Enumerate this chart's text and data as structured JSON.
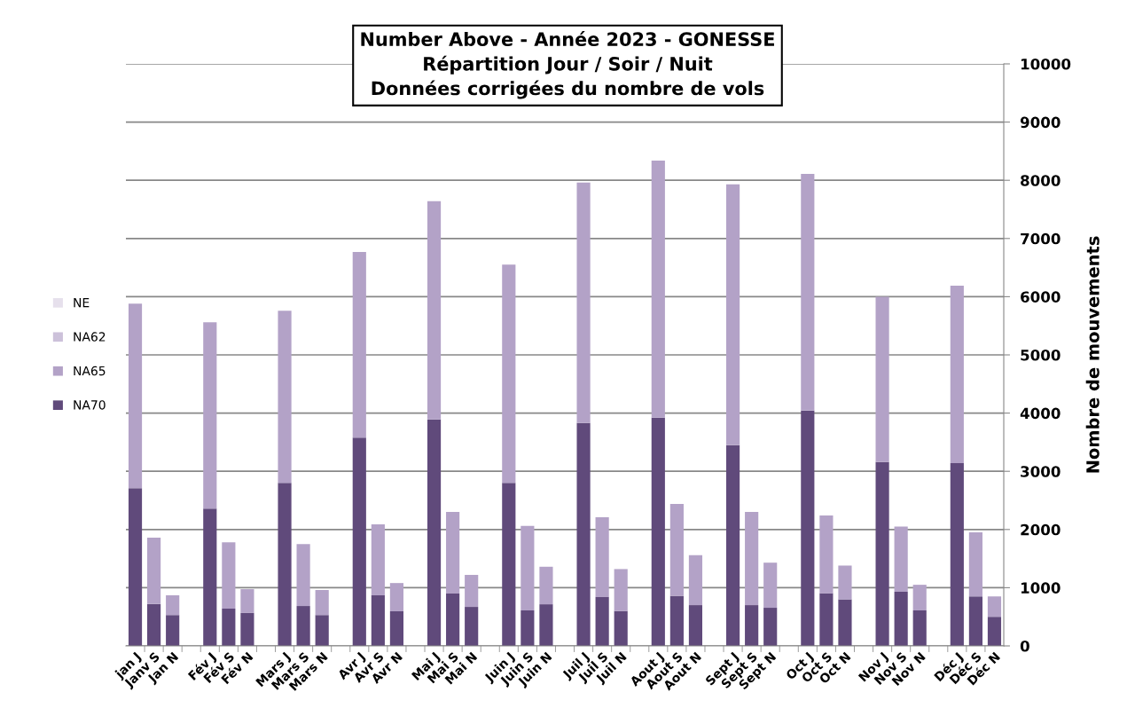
{
  "chart_data": {
    "type": "bar",
    "stacked": true,
    "title": "Number Above - Année 2023 - GONESSE\nRépartition Jour / Soir / Nuit\nDonnées corrigées du nombre de vols",
    "ylabel": "Nombre de mouvements",
    "categories": [
      "jan J",
      "Janv S",
      "Jan N",
      null,
      "Fév J",
      "Fév S",
      "Fév N",
      null,
      "Mars J",
      "Mars S",
      "Mars N",
      null,
      "Avr J",
      "Avr S",
      "Avr N",
      null,
      "Mai J",
      "Mai S",
      "Mai N",
      null,
      "Juin J",
      "Juin S",
      "Juin N",
      null,
      "Juil J",
      "Juil S",
      "Juil N",
      null,
      "Aout J",
      "Aout S",
      "Aout N",
      null,
      "Sept J",
      "Sept S",
      "Sept N",
      null,
      "Oct J",
      "Oct S",
      "Oct N",
      null,
      "Nov J",
      "Nov S",
      "Nov N",
      null,
      "Déc J",
      "Déc S",
      "Déc N"
    ],
    "series": [
      {
        "name": "NA70",
        "color": "#604a7b",
        "values": [
          2710,
          720,
          530,
          null,
          2360,
          640,
          565,
          null,
          2800,
          685,
          530,
          null,
          3580,
          870,
          595,
          null,
          3890,
          900,
          670,
          null,
          2800,
          610,
          715,
          null,
          3830,
          840,
          600,
          null,
          3920,
          860,
          700,
          null,
          3450,
          700,
          655,
          null,
          4045,
          905,
          800,
          null,
          3160,
          930,
          610,
          null,
          3140,
          850,
          500
        ]
      },
      {
        "name": "NA65",
        "color": "#b3a2c7",
        "values": [
          3170,
          1140,
          340,
          null,
          3200,
          1140,
          410,
          null,
          2960,
          1065,
          430,
          null,
          3190,
          1220,
          485,
          null,
          3750,
          1400,
          550,
          null,
          3750,
          1450,
          645,
          null,
          4130,
          1370,
          720,
          null,
          4420,
          1580,
          860,
          null,
          4480,
          1600,
          775,
          null,
          4065,
          1335,
          580,
          null,
          2840,
          1120,
          440,
          null,
          3050,
          1100,
          350
        ]
      },
      {
        "name": "NA62",
        "color": "#ccc1da",
        "values": [
          null,
          null,
          null,
          null,
          null,
          null,
          null,
          null,
          null,
          null,
          null,
          null,
          null,
          null,
          null,
          null,
          null,
          null,
          null,
          null,
          null,
          null,
          null,
          null,
          null,
          null,
          null,
          null,
          null,
          null,
          null,
          null,
          null,
          null,
          null,
          null,
          null,
          null,
          null,
          null,
          null,
          null,
          null,
          null,
          null,
          null,
          null
        ]
      },
      {
        "name": "NE",
        "color": "#e6e0ec",
        "values": [
          null,
          null,
          null,
          null,
          null,
          null,
          null,
          null,
          null,
          null,
          null,
          null,
          null,
          null,
          null,
          null,
          null,
          null,
          null,
          null,
          null,
          null,
          null,
          null,
          null,
          null,
          null,
          null,
          null,
          null,
          null,
          null,
          null,
          null,
          null,
          null,
          null,
          null,
          null,
          null,
          null,
          null,
          null,
          null,
          null,
          null,
          null
        ]
      }
    ],
    "ylim": [
      0,
      10000
    ],
    "yticks": [
      0,
      1000,
      2000,
      3000,
      4000,
      5000,
      6000,
      7000,
      8000,
      9000,
      10000
    ],
    "grid": "y",
    "legend": "left"
  }
}
